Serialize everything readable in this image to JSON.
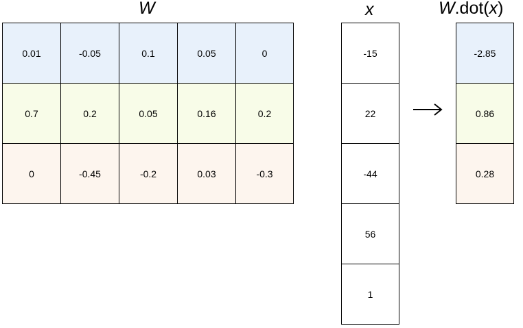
{
  "labels": {
    "w": "W",
    "x": "x",
    "result_prefix": "W",
    "result_func": ".dot(",
    "result_arg": "x",
    "result_suffix": ")"
  },
  "colors": {
    "row1": "#e8f1fb",
    "row2": "#f8fce8",
    "row3": "#fdf5ee",
    "plain": "#ffffff"
  },
  "matrix_w": [
    [
      "0.01",
      "-0.05",
      "0.1",
      "0.05",
      "0"
    ],
    [
      "0.7",
      "0.2",
      "0.05",
      "0.16",
      "0.2"
    ],
    [
      "0",
      "-0.45",
      "-0.2",
      "0.03",
      "-0.3"
    ]
  ],
  "vector_x": [
    "-15",
    "22",
    "-44",
    "56",
    "1"
  ],
  "result": [
    "-2.85",
    "0.86",
    "0.28"
  ]
}
